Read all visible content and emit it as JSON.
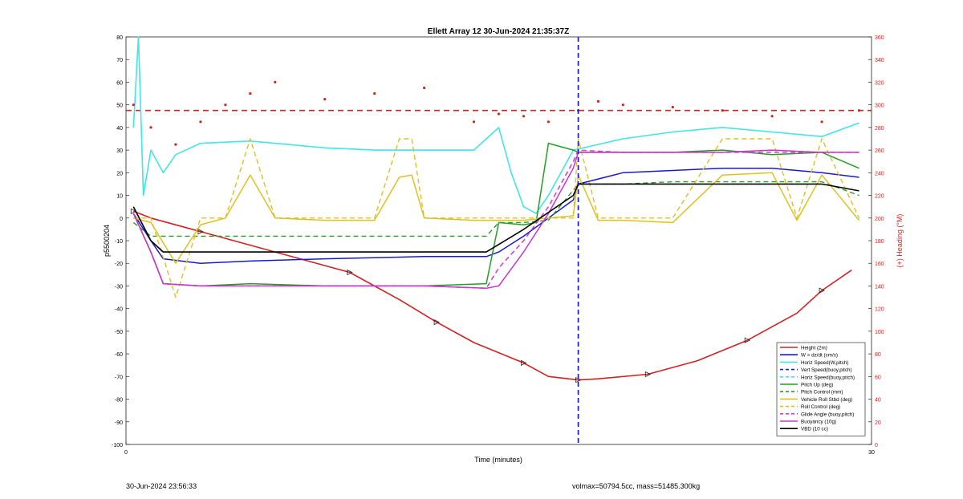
{
  "chart_data": {
    "type": "line",
    "title": "Ellett Array 12 30-Jun-2024 21:35:37Z",
    "xlabel": "Time (minutes)",
    "ylabel_left": "p5500204",
    "ylabel_right": "(+) Heading (°M)",
    "xlim": [
      0,
      30
    ],
    "ylim_left": [
      -100,
      80
    ],
    "ylim_right": [
      0,
      360
    ],
    "x_ticks": [
      "0",
      "30"
    ],
    "y_ticks_left": [
      "80",
      "70",
      "60",
      "50",
      "40",
      "30",
      "20",
      "10",
      "0",
      "-10",
      "-20",
      "-30",
      "-40",
      "-50",
      "-60",
      "-70",
      "-80",
      "-90",
      "-100"
    ],
    "y_ticks_right": [
      "360",
      "340",
      "320",
      "300",
      "280",
      "260",
      "240",
      "220",
      "200",
      "180",
      "160",
      "140",
      "120",
      "100",
      "80",
      "60",
      "40",
      "20",
      "0"
    ],
    "grid": false,
    "legend_position": "bottom-right",
    "vertical_line_x": 18.2,
    "colors": {
      "height": "#d62020",
      "w": "#1a1acc",
      "horiz": "#3ee6e6",
      "pitch": "#22a022",
      "roll": "#e0c020",
      "glide": "#dd33dd",
      "buoyancy": "#cc33cc",
      "vbd": "#000000",
      "heading": "#d62020"
    },
    "series": [
      {
        "name": "Height (2m)",
        "x": [
          0.3,
          1,
          3,
          6,
          9,
          11,
          12.5,
          14,
          16,
          17,
          18.2,
          19,
          21,
          23,
          25,
          27,
          28,
          29.2
        ],
        "y": [
          3,
          0,
          -6,
          -15,
          -24,
          -36,
          -46,
          -55,
          -64,
          -70,
          -71.5,
          -71,
          -69,
          -63,
          -54,
          -42,
          -32,
          -23
        ]
      },
      {
        "name": "W = dz/dt (cm/s)",
        "x": [
          0.3,
          1,
          1.5,
          3,
          5,
          8,
          12,
          14.5,
          15,
          16,
          17,
          18,
          18.2,
          20,
          22,
          24,
          26,
          28,
          29.5
        ],
        "y": [
          2,
          -10,
          -18,
          -20,
          -19,
          -18,
          -17,
          -17,
          -15,
          -8,
          0,
          8,
          15,
          20,
          21,
          22,
          22,
          20,
          18
        ]
      },
      {
        "name": "Horiz Speed(W,pitch)",
        "x": [
          0.3,
          0.5,
          0.7,
          1,
          1.5,
          2,
          3,
          5,
          8,
          10,
          12,
          14,
          14.5,
          15,
          15.5,
          16,
          16.5,
          17,
          18,
          20,
          22,
          24,
          26,
          28,
          29.5
        ],
        "y": [
          40,
          80,
          10,
          30,
          20,
          28,
          33,
          34,
          31,
          30,
          30,
          30,
          35,
          40,
          20,
          5,
          2,
          10,
          30,
          35,
          38,
          40,
          38,
          36,
          42
        ]
      },
      {
        "name": "Vert Speed(buoy,pitch)",
        "x": [
          18.2,
          18.2
        ],
        "y": [
          80,
          -100
        ]
      },
      {
        "name": "Horiz Speed(buoy,pitch)",
        "x": [
          18.2,
          18.2
        ],
        "y": [
          80,
          -100
        ]
      },
      {
        "name": "Pitch Up (deg)",
        "x": [
          0.3,
          1,
          1.5,
          3,
          5,
          8,
          12,
          14.5,
          15,
          16,
          16.5,
          17,
          18,
          18.2,
          20,
          22,
          24,
          26,
          28,
          29.5
        ],
        "y": [
          2,
          -15,
          -29,
          -30,
          -29,
          -30,
          -30,
          -29,
          -2,
          -3,
          -2,
          33,
          30,
          29,
          29,
          29,
          30,
          28,
          29,
          22
        ]
      },
      {
        "name": "Pitch Control (mm)",
        "x": [
          0.3,
          1,
          3,
          6,
          9,
          12,
          14.5,
          15,
          16,
          17,
          18.2,
          20,
          22,
          24,
          26,
          28,
          29.5
        ],
        "y": [
          -2,
          -8,
          -8,
          -8,
          -8,
          -8,
          -8,
          -2,
          -2,
          -1,
          15,
          15,
          16,
          16,
          16,
          16,
          10
        ]
      },
      {
        "name": "Vehicle Roll Stbd (deg)",
        "x": [
          0.3,
          1,
          2,
          3,
          4,
          5,
          6,
          8,
          10,
          11,
          11.5,
          12,
          14,
          16,
          17,
          18,
          18.2,
          19,
          20,
          22,
          24,
          26,
          27,
          28,
          29.5
        ],
        "y": [
          0,
          -2,
          -20,
          -3,
          0,
          19,
          0,
          -1,
          -1,
          18,
          19,
          0,
          -1,
          -1,
          0,
          1,
          19,
          -1,
          -1,
          -2,
          19,
          20,
          -1,
          19,
          -1
        ]
      },
      {
        "name": "Roll Control (deg)",
        "x": [
          0.3,
          1,
          2,
          3,
          4,
          5,
          6,
          8,
          10,
          11,
          11.5,
          12,
          14,
          16,
          17,
          18,
          18.2,
          19,
          20,
          22,
          24,
          26,
          27,
          28,
          29.5
        ],
        "y": [
          0,
          0,
          -35,
          0,
          0,
          35,
          0,
          0,
          0,
          35,
          35,
          0,
          0,
          0,
          0,
          0,
          35,
          0,
          0,
          0,
          35,
          35,
          0,
          35,
          0
        ]
      },
      {
        "name": "Glide Angle (buoy,pitch)",
        "x": [
          0.3,
          1,
          1.5,
          3,
          5,
          8,
          12,
          14.5,
          15,
          16,
          17,
          18,
          18.2,
          20,
          22,
          24,
          26,
          28,
          29.5
        ],
        "y": [
          2,
          -15,
          -29,
          -30,
          -30,
          -30,
          -30,
          -31,
          -22,
          -10,
          5,
          25,
          30,
          29,
          29,
          29,
          29,
          29,
          29
        ]
      },
      {
        "name": "Buoyancy (10g)",
        "x": [
          0.3,
          1,
          1.5,
          3,
          5,
          8,
          12,
          14.5,
          15,
          16,
          17,
          18,
          18.2,
          20,
          22,
          24,
          26,
          28,
          29.5
        ],
        "y": [
          2,
          -15,
          -29,
          -30,
          -30,
          -30,
          -30,
          -31,
          -30,
          -15,
          2,
          22,
          29,
          29,
          29,
          29,
          30,
          29,
          29
        ]
      },
      {
        "name": "VBD (10 cc)",
        "x": [
          0.3,
          1,
          1.5,
          3,
          6,
          10,
          14.5,
          16,
          18,
          18.2,
          20,
          22,
          24,
          26,
          28,
          29.5
        ],
        "y": [
          5,
          -10,
          -15,
          -15,
          -15,
          -15,
          -15,
          -5,
          10,
          15,
          15,
          15,
          15,
          15,
          15,
          12
        ]
      }
    ],
    "heading_series": {
      "name": "(+) Heading (°M)",
      "x": [
        0.3,
        1,
        2,
        3,
        4,
        5,
        6,
        8,
        10,
        12,
        14,
        15,
        16,
        17,
        18.2,
        19,
        20,
        22,
        24,
        26,
        28,
        29.5
      ],
      "y": [
        300,
        280,
        265,
        285,
        300,
        310,
        320,
        305,
        310,
        315,
        285,
        292,
        290,
        285,
        295,
        303,
        300,
        298,
        295,
        290,
        285,
        295
      ]
    },
    "reference_lines": [
      {
        "name": "Height ref",
        "y_right": 295
      }
    ],
    "legend": [
      "Height (2m)",
      "W = dz/dt (cm/s)",
      "Horiz Speed(W,pitch)",
      "Vert Speed(buoy,pitch)",
      "Horiz Speed(buoy,pitch)",
      "Pitch Up (deg)",
      "Pitch Control (mm)",
      "Vehicle Roll Stbd (deg)",
      "Roll Control (deg)",
      "Glide Angle (buoy,pitch)",
      "Buoyancy (10g)",
      "VBD (10 cc)"
    ]
  },
  "footer": {
    "left": "30-Jun-2024 23:56:33",
    "right": "volmax=50794.5cc, mass=51485.300kg"
  }
}
